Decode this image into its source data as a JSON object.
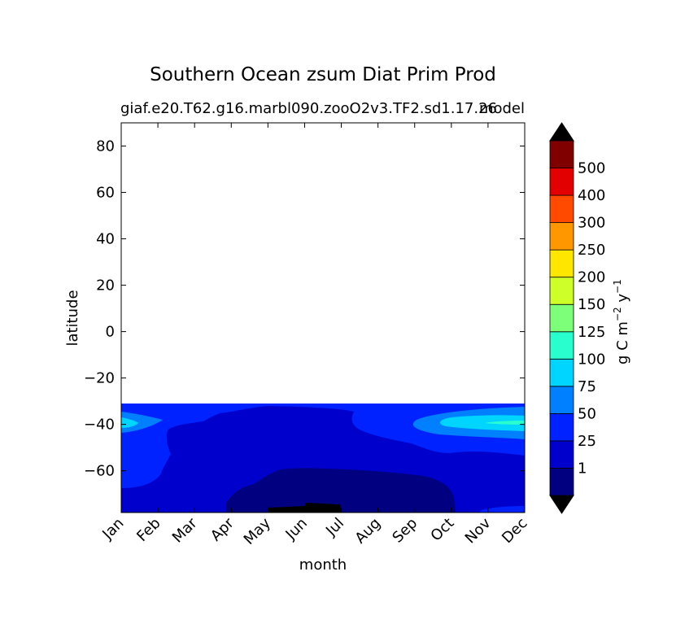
{
  "chart_data": {
    "type": "contourf",
    "title": "Southern Ocean zsum Diat Prim Prod",
    "subtitle_left": "giaf.e20.T62.g16.marbl090.zooO2v3.TF2.sd1.17.26",
    "subtitle_right": "model",
    "xlabel": "month",
    "ylabel": "latitude",
    "x_categories": [
      "Jan",
      "Feb",
      "Mar",
      "Apr",
      "May",
      "Jun",
      "Jul",
      "Aug",
      "Sep",
      "Oct",
      "Nov",
      "Dec"
    ],
    "yticks": [
      -60,
      -40,
      -20,
      0,
      20,
      40,
      60,
      80
    ],
    "ytick_labels": [
      "−60",
      "−40",
      "−20",
      "0",
      "20",
      "40",
      "60",
      "80"
    ],
    "ylim": [
      -78,
      90
    ],
    "data_lat_max": -31.5,
    "colorbar": {
      "label_main": "g C m",
      "label_exp1": "−2",
      "label_mid": " y",
      "label_exp2": "−1",
      "levels": [
        0,
        1,
        25,
        50,
        75,
        100,
        125,
        150,
        200,
        250,
        300,
        400,
        500,
        600
      ],
      "tick_labels": [
        "1",
        "25",
        "50",
        "75",
        "100",
        "125",
        "150",
        "200",
        "250",
        "300",
        "400",
        "500"
      ],
      "colors": [
        "#000080",
        "#0000cd",
        "#0022ff",
        "#0080ff",
        "#00d5ff",
        "#29ffce",
        "#7dff7a",
        "#ceff29",
        "#ffe600",
        "#ff9800",
        "#ff4a00",
        "#e30000",
        "#800000"
      ],
      "under_color": "#000000",
      "over_color": "#000000",
      "extend": "both"
    },
    "regions": [
      {
        "level": "1-25",
        "color": "#0000cd",
        "lat_range": [
          -78,
          -31.5
        ],
        "months": "Jan-Dec"
      },
      {
        "level": "0-1",
        "color": "#000080",
        "lat_range": [
          -78,
          -60
        ],
        "months": "Apr-Oct"
      },
      {
        "level": "<0",
        "color": "#000000",
        "lat_range": [
          -78,
          -76
        ],
        "months": "May-Jul"
      },
      {
        "level": "25-50",
        "color": "#0022ff",
        "lat_range": [
          -58,
          -31.5
        ],
        "months": "Jan-Mar, Sep-Dec"
      },
      {
        "level": "50-75",
        "color": "#0080ff",
        "lat_range": [
          -44,
          -35
        ],
        "months": "Jan, Oct-Dec"
      },
      {
        "level": "75-100",
        "color": "#00d5ff",
        "lat_range": [
          -42,
          -38
        ],
        "months": "Jan, Nov-Dec"
      }
    ]
  }
}
